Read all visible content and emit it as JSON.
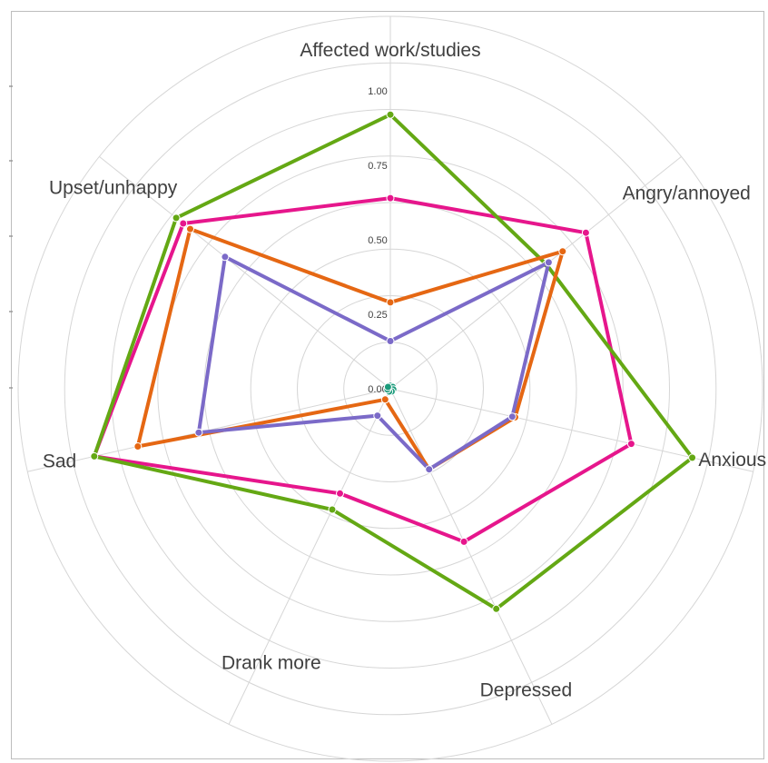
{
  "chart_data": {
    "type": "radar",
    "title": "",
    "categories": [
      "Affected work/studies",
      "Angry/annoyed",
      "Anxious",
      "Depressed",
      "Drank more",
      "Sad",
      "Upset/unhappy"
    ],
    "ticks": [
      "0.00",
      "0.25",
      "0.50",
      "0.75",
      "1.00"
    ],
    "rmax": 1.25,
    "grid": true,
    "legend": "none",
    "series": [
      {
        "color": "#e6168c",
        "values": [
          0.64,
          0.84,
          0.83,
          0.57,
          0.39,
          1.02,
          0.89
        ]
      },
      {
        "color": "#64a814",
        "values": [
          0.92,
          0.67,
          1.04,
          0.82,
          0.45,
          1.02,
          0.92
        ]
      },
      {
        "color": "#e56713",
        "values": [
          0.29,
          0.74,
          0.43,
          0.3,
          0.04,
          0.87,
          0.86
        ]
      },
      {
        "color": "#7b6ac8",
        "values": [
          0.16,
          0.68,
          0.42,
          0.3,
          0.1,
          0.66,
          0.71
        ]
      },
      {
        "color": "#1a9a7a",
        "values": [
          0.01,
          0.01,
          0.01,
          0.01,
          0.01,
          0.01,
          0.01
        ]
      }
    ]
  }
}
